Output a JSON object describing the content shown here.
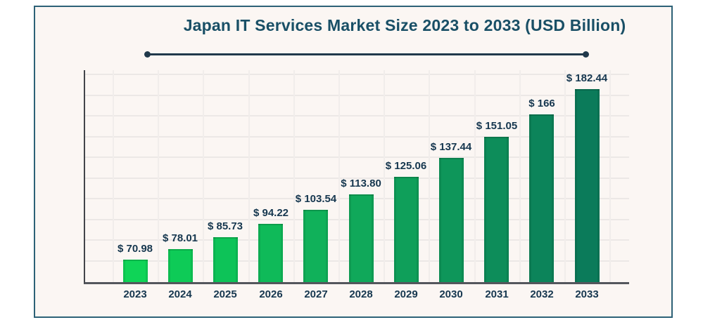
{
  "chart": {
    "title": "Japan IT Services Market Size 2023 to 2033 (USD Billion)"
  },
  "chart_data": {
    "type": "bar",
    "title": "Japan IT Services Market Size 2023 to 2033 (USD Billion)",
    "xlabel": "",
    "ylabel": "",
    "unit": "USD Billion",
    "categories": [
      "2023",
      "2024",
      "2025",
      "2026",
      "2027",
      "2028",
      "2029",
      "2030",
      "2031",
      "2032",
      "2033"
    ],
    "values": [
      70.98,
      78.01,
      85.73,
      94.22,
      103.54,
      113.8,
      125.06,
      137.44,
      151.05,
      166,
      182.44
    ],
    "value_labels": [
      "$ 70.98",
      "$ 78.01",
      "$ 85.73",
      "$ 94.22",
      "$ 103.54",
      "$ 113.80",
      "$ 125.06",
      "$ 137.44",
      "$ 151.05",
      "$ 166",
      "$ 182.44"
    ],
    "y_axis_tick_labels_visible": false,
    "grid": true,
    "legend": false,
    "bar_colors": [
      "#0fd457",
      "#0ecb57",
      "#0dc358",
      "#0fba59",
      "#10b15a",
      "#10a85a",
      "#0f9f5a",
      "#0e965a",
      "#0d8d5a",
      "#0c845a",
      "#0b7b5a"
    ],
    "label_color": "#16374f",
    "title_color": "#194f66",
    "axis_color": "#54565c",
    "frame_border_color": "#2d6177",
    "background_color": "#fbf6f3"
  }
}
